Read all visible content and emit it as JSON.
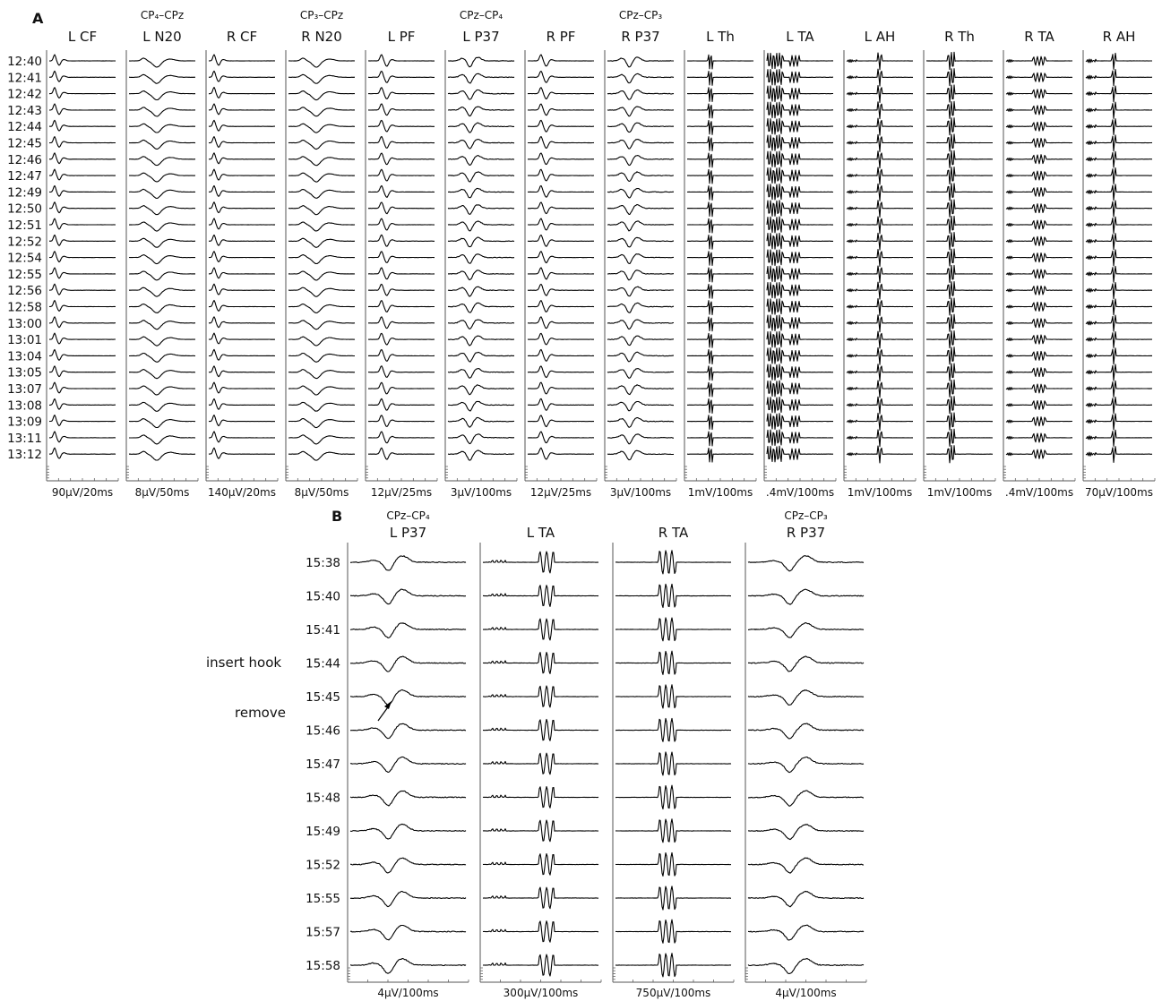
{
  "panel_a": {
    "label": "A",
    "columns": [
      {
        "title": "L CF",
        "pair": "",
        "scale": "90µV/20ms",
        "wave": "cf"
      },
      {
        "title": "L N20",
        "pair": "CP₄–CPz",
        "scale": "8µV/50ms",
        "wave": "n20"
      },
      {
        "title": "R CF",
        "pair": "",
        "scale": "140µV/20ms",
        "wave": "cf"
      },
      {
        "title": "R N20",
        "pair": "CP₃–CPz",
        "scale": "8µV/50ms",
        "wave": "n20"
      },
      {
        "title": "L PF",
        "pair": "",
        "scale": "12µV/25ms",
        "wave": "pf"
      },
      {
        "title": "L P37",
        "pair": "CPz–CP₄",
        "scale": "3µV/100ms",
        "wave": "p37"
      },
      {
        "title": "R PF",
        "pair": "",
        "scale": "12µV/25ms",
        "wave": "pf"
      },
      {
        "title": "R P37",
        "pair": "CPz–CP₃",
        "scale": "3µV/100ms",
        "wave": "p37"
      },
      {
        "title": "L Th",
        "pair": "",
        "scale": "1mV/100ms",
        "wave": "th"
      },
      {
        "title": "L TA",
        "pair": "",
        "scale": ".4mV/100ms",
        "wave": "ta"
      },
      {
        "title": "L AH",
        "pair": "",
        "scale": "1mV/100ms",
        "wave": "ah"
      },
      {
        "title": "R Th",
        "pair": "",
        "scale": "1mV/100ms",
        "wave": "rth"
      },
      {
        "title": "R TA",
        "pair": "",
        "scale": ".4mV/100ms",
        "wave": "rta"
      },
      {
        "title": "R AH",
        "pair": "",
        "scale": "70µV/100ms",
        "wave": "rah"
      }
    ],
    "times": [
      "12:40",
      "12:41",
      "12:42",
      "12:43",
      "12:44",
      "12:45",
      "12:46",
      "12:47",
      "12:49",
      "12:50",
      "12:51",
      "12:52",
      "12:54",
      "12:55",
      "12:56",
      "12:58",
      "13:00",
      "13:01",
      "13:04",
      "13:05",
      "13:07",
      "13:08",
      "13:09",
      "13:11",
      "13:12"
    ]
  },
  "panel_b": {
    "label": "B",
    "columns": [
      {
        "title": "L P37",
        "pair": "CPz–CP₄",
        "scale": "4µV/100ms",
        "wave": "bp37"
      },
      {
        "title": "L TA",
        "pair": "",
        "scale": "300µV/100ms",
        "wave": "bta"
      },
      {
        "title": "R TA",
        "pair": "",
        "scale": "750µV/100ms",
        "wave": "brta"
      },
      {
        "title": "R P37",
        "pair": "CPz–CP₃",
        "scale": "4µV/100ms",
        "wave": "bp37r"
      }
    ],
    "times": [
      "15:38",
      "15:40",
      "15:41",
      "15:44",
      "15:45",
      "15:46",
      "15:47",
      "15:48",
      "15:49",
      "15:52",
      "15:55",
      "15:57",
      "15:58"
    ],
    "annotations": {
      "insert": "insert hook",
      "remove": "remove"
    }
  }
}
